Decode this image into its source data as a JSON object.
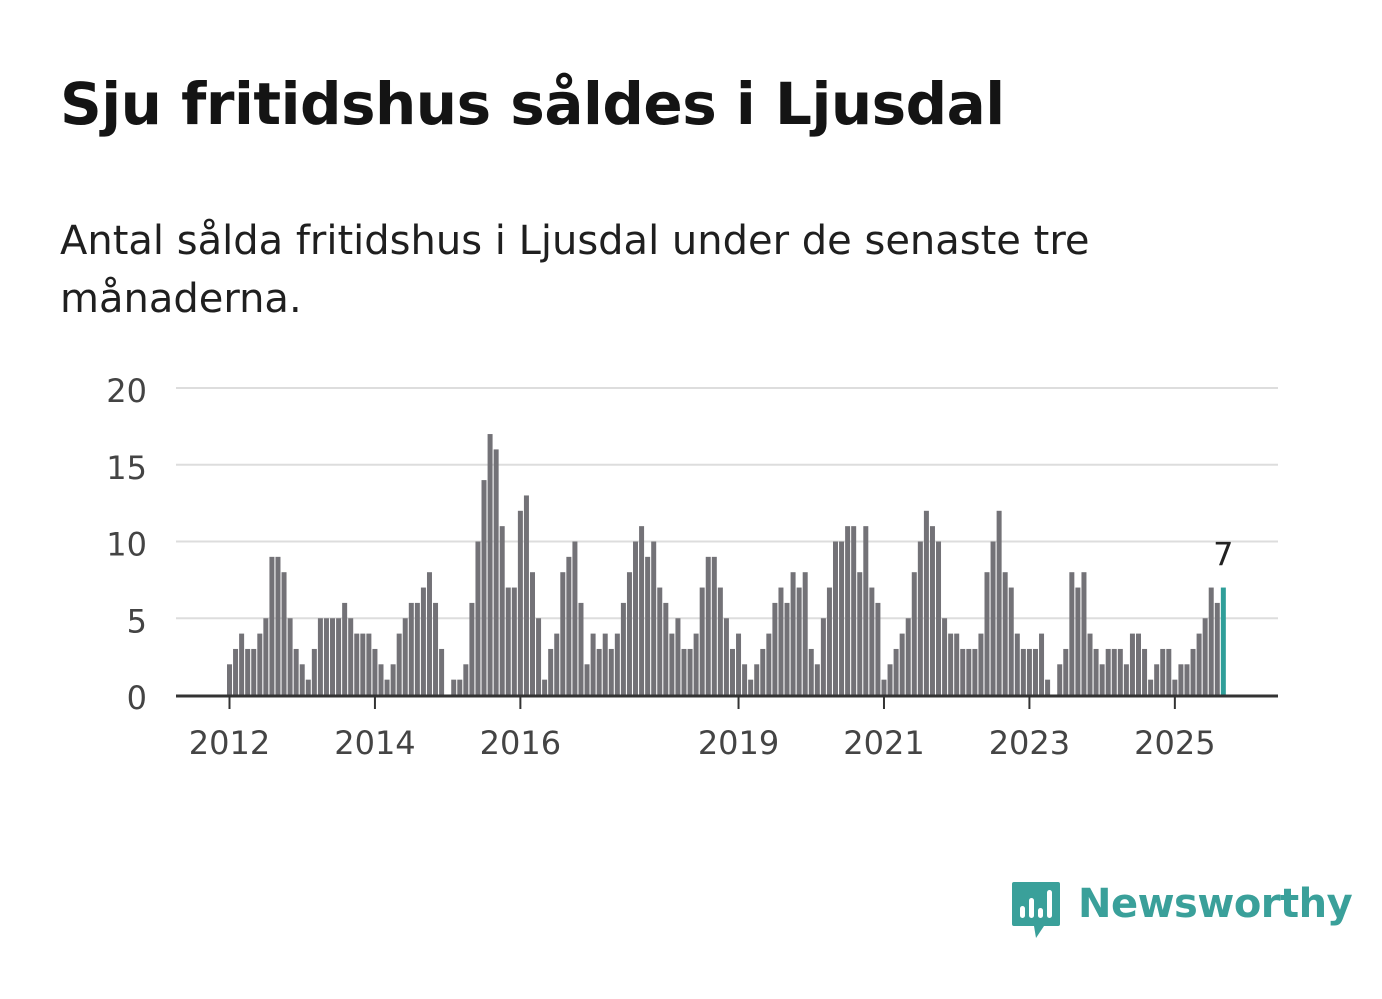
{
  "title": "Sju fritidshus såldes i Ljusdal",
  "subtitle": "Antal sålda fritidshus i Ljusdal under de senaste tre månaderna.",
  "brand": {
    "name": "Newsworthy",
    "color": "#3aa09a",
    "icon": "newsworthy-chart-bubble-icon"
  },
  "chart_data": {
    "type": "bar",
    "x_start": "2012-01",
    "interval": "month",
    "values": [
      2,
      3,
      4,
      3,
      3,
      4,
      5,
      9,
      9,
      8,
      5,
      3,
      2,
      1,
      3,
      5,
      5,
      5,
      5,
      6,
      5,
      4,
      4,
      4,
      3,
      2,
      1,
      2,
      4,
      5,
      6,
      6,
      7,
      8,
      6,
      3,
      0,
      1,
      1,
      2,
      6,
      10,
      14,
      17,
      16,
      11,
      7,
      7,
      12,
      13,
      8,
      5,
      1,
      3,
      4,
      8,
      9,
      10,
      6,
      2,
      4,
      3,
      4,
      3,
      4,
      6,
      8,
      10,
      11,
      9,
      10,
      7,
      6,
      4,
      5,
      3,
      3,
      4,
      7,
      9,
      9,
      7,
      5,
      3,
      4,
      2,
      1,
      2,
      3,
      4,
      6,
      7,
      6,
      8,
      7,
      8,
      3,
      2,
      5,
      7,
      10,
      10,
      11,
      11,
      8,
      11,
      7,
      6,
      1,
      2,
      3,
      4,
      5,
      8,
      10,
      12,
      11,
      10,
      5,
      4,
      4,
      3,
      3,
      3,
      4,
      8,
      10,
      12,
      8,
      7,
      4,
      3,
      3,
      3,
      4,
      1,
      0,
      2,
      3,
      8,
      7,
      8,
      4,
      3,
      2,
      3,
      3,
      3,
      2,
      4,
      4,
      3,
      1,
      2,
      3,
      3,
      1,
      2,
      2,
      3,
      4,
      5,
      7,
      6,
      7
    ],
    "highlight_last": true,
    "highlight_label": "7",
    "xticks": [
      {
        "label": "2012",
        "index": 0
      },
      {
        "label": "2014",
        "index": 24
      },
      {
        "label": "2016",
        "index": 48
      },
      {
        "label": "2019",
        "index": 84
      },
      {
        "label": "2021",
        "index": 108
      },
      {
        "label": "2023",
        "index": 132
      },
      {
        "label": "2025",
        "index": 156
      }
    ],
    "yticks": [
      "0",
      "5",
      "10",
      "15",
      "20"
    ],
    "ylim": [
      0,
      20
    ],
    "grid": true,
    "colors": {
      "bar": "#737277",
      "highlight": "#2f9e99",
      "grid": "#dddddd",
      "axis": "#333333",
      "text": "#444444"
    }
  }
}
